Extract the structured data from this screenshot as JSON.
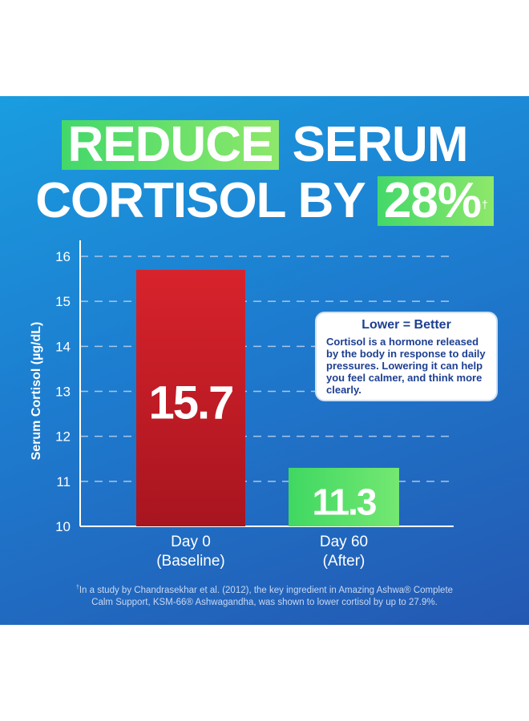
{
  "headline": {
    "highlight1": "REDUCE",
    "rest1": "SERUM",
    "rest2": "CORTISOL BY",
    "highlight2": "28%",
    "dagger": "†"
  },
  "callout": {
    "title": "Lower = Better",
    "body": "Cortisol is a hormone released by the body in response to daily pressures. Lowering it can help you feel calmer, and think more clearly."
  },
  "footnote": {
    "dagger": "†",
    "line1": "In a study by Chandrasekhar et al. (2012), the key ingredient in Amazing Ashwa® Complete",
    "line2": "Calm Support, KSM-66® Ashwagandha, was shown to lower cortisol by up to 27.9%."
  },
  "colors": {
    "bar_red": "#cc1f2a",
    "bar_green": "#4fe06c",
    "grid": "#a9c6ea"
  },
  "chart_data": {
    "type": "bar",
    "title": "",
    "ylabel": "Serum Cortisol (µg/dL)",
    "xlabel": "",
    "ylim": [
      10,
      16
    ],
    "yticks": [
      "10",
      "11",
      "12",
      "13",
      "14",
      "15",
      "16"
    ],
    "categories": [
      "Day 0\n(Baseline)",
      "Day 60\n(After)"
    ],
    "category_lines": [
      [
        "Day 0",
        "(Baseline)"
      ],
      [
        "Day 60",
        "(After)"
      ]
    ],
    "values": [
      15.7,
      11.3
    ],
    "value_labels": [
      "15.7",
      "11.3"
    ]
  }
}
